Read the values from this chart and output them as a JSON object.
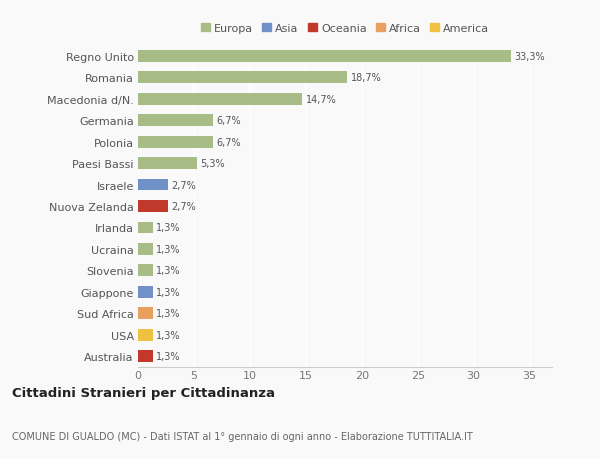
{
  "categories": [
    "Australia",
    "USA",
    "Sud Africa",
    "Giappone",
    "Slovenia",
    "Ucraina",
    "Irlanda",
    "Nuova Zelanda",
    "Israele",
    "Paesi Bassi",
    "Polonia",
    "Germania",
    "Macedonia d/N.",
    "Romania",
    "Regno Unito"
  ],
  "values": [
    1.3,
    1.3,
    1.3,
    1.3,
    1.3,
    1.3,
    1.3,
    2.7,
    2.7,
    5.3,
    6.7,
    6.7,
    14.7,
    18.7,
    33.3
  ],
  "colors": [
    "#c0392b",
    "#f0c040",
    "#e8a060",
    "#7090c8",
    "#a8bc88",
    "#a8bc88",
    "#a8bc88",
    "#c0392b",
    "#7090c8",
    "#a8bc88",
    "#a8bc88",
    "#a8bc88",
    "#a8bc88",
    "#a8bc88",
    "#a8bc88"
  ],
  "labels": [
    "1,3%",
    "1,3%",
    "1,3%",
    "1,3%",
    "1,3%",
    "1,3%",
    "1,3%",
    "2,7%",
    "2,7%",
    "5,3%",
    "6,7%",
    "6,7%",
    "14,7%",
    "18,7%",
    "33,3%"
  ],
  "legend_labels": [
    "Europa",
    "Asia",
    "Oceania",
    "Africa",
    "America"
  ],
  "legend_colors": [
    "#a8bc88",
    "#7090c8",
    "#c0392b",
    "#e8a060",
    "#f0c040"
  ],
  "title": "Cittadini Stranieri per Cittadinanza",
  "subtitle": "COMUNE DI GUALDO (MC) - Dati ISTAT al 1° gennaio di ogni anno - Elaborazione TUTTITALIA.IT",
  "xlim": [
    0,
    37
  ],
  "background_color": "#f9f9f9",
  "grid_color": "#ffffff",
  "bar_height": 0.55
}
